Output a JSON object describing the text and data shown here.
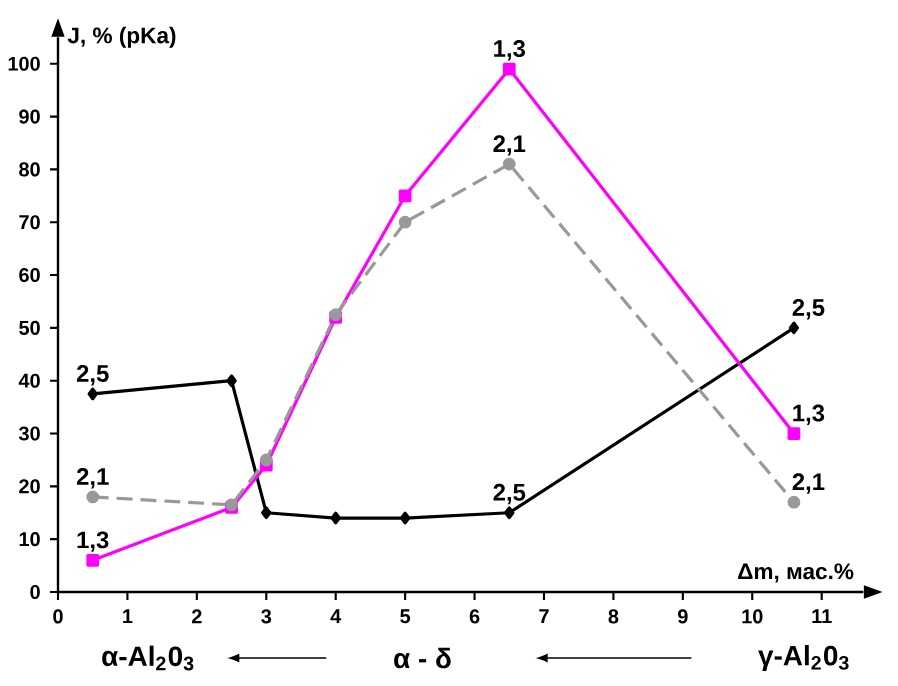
{
  "chart_data": {
    "type": "line",
    "xlabel": "Δm, мас.%",
    "ylabel": "J, % (pKa)",
    "x": [
      0.5,
      2.5,
      3,
      4,
      5,
      6.5,
      10.6
    ],
    "series": [
      {
        "color": "#000000",
        "marker": "diamond",
        "line_style": "solid",
        "values": [
          37.5,
          40,
          15,
          14,
          14,
          15,
          50
        ]
      },
      {
        "color": "#ff00ff",
        "marker": "square",
        "line_style": "solid",
        "values": [
          6,
          16,
          24,
          52,
          75,
          99,
          30
        ]
      },
      {
        "color": "#999999",
        "marker": "circle",
        "line_style": "dashed",
        "values": [
          18,
          16.5,
          25,
          52.5,
          70,
          81,
          17
        ]
      }
    ],
    "xlim": [
      0,
      11.6
    ],
    "ylim": [
      0,
      105
    ],
    "xticks": [
      0,
      1,
      2,
      3,
      4,
      5,
      6,
      7,
      8,
      9,
      10,
      11
    ],
    "yticks": [
      0,
      10,
      20,
      30,
      40,
      50,
      60,
      70,
      80,
      90,
      100
    ],
    "grid": false,
    "annotations": [
      {
        "text": "2,5",
        "x": 0.5,
        "y": 37.5
      },
      {
        "text": "2,5",
        "x": 6.5,
        "y": 15
      },
      {
        "text": "2,5",
        "x": 10.6,
        "y": 50
      },
      {
        "text": "2,1",
        "x": 0.5,
        "y": 18
      },
      {
        "text": "2,1",
        "x": 6.5,
        "y": 81
      },
      {
        "text": "2,1",
        "x": 10.6,
        "y": 17
      },
      {
        "text": "1,3",
        "x": 0.5,
        "y": 6
      },
      {
        "text": "1,3",
        "x": 6.5,
        "y": 99
      },
      {
        "text": "1,3",
        "x": 10.6,
        "y": 30
      },
      "α-Al$_{2}$0$_{3}$",
      "α - δ",
      "γ-Al$_{2}$0$_{3}$"
    ]
  }
}
